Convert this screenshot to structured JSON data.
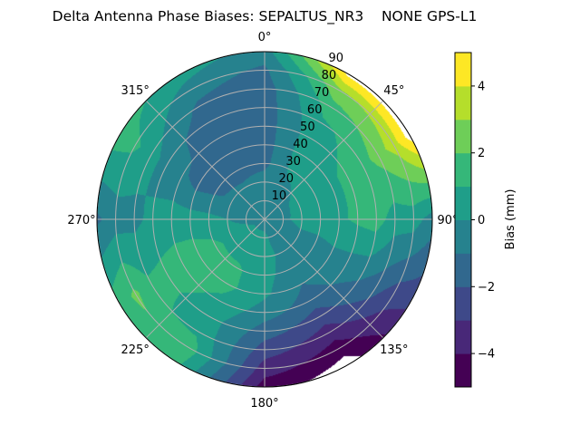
{
  "chart_data": {
    "type": "heatmap",
    "subtype": "polar filled contour",
    "title": "Delta Antenna Phase Biases: SEPALTUS_NR3    NONE GPS-L1",
    "angular_axis": {
      "direction": "clockwise",
      "zero_location": "north",
      "tick_labels": [
        "0°",
        "45°",
        "90°",
        "135°",
        "180°",
        "225°",
        "270°",
        "315°"
      ],
      "tick_values": [
        0,
        45,
        90,
        135,
        180,
        225,
        270,
        315
      ]
    },
    "radial_axis": {
      "range": [
        0,
        90
      ],
      "tick_values": [
        10,
        20,
        30,
        40,
        50,
        60,
        70,
        80,
        90
      ],
      "tick_labels": [
        "10",
        "20",
        "30",
        "40",
        "50",
        "60",
        "70",
        "80",
        "90"
      ]
    },
    "grid": true,
    "levels": [
      -5,
      -4,
      -3,
      -2,
      -1,
      0,
      1,
      2,
      3,
      4,
      5
    ],
    "level_colors": [
      "#440154",
      "#482878",
      "#3e4989",
      "#31688e",
      "#26828e",
      "#1f9e89",
      "#35b779",
      "#6ece58",
      "#b5de2b",
      "#fde725"
    ],
    "out_of_range_color": "#ffffff",
    "colorbar": {
      "label": "Bias (mm)",
      "tick_values": [
        -4,
        -2,
        0,
        2,
        4
      ],
      "tick_labels": [
        "−4",
        "−2",
        "0",
        "2",
        "4"
      ],
      "range": [
        -5,
        5
      ],
      "placement": "right"
    },
    "grid_azimuths": [
      0,
      30,
      60,
      90,
      120,
      150,
      180,
      210,
      240,
      270,
      300,
      330
    ],
    "grid_zeniths": [
      0,
      10,
      20,
      30,
      40,
      50,
      60,
      70,
      80,
      90
    ],
    "values": [
      [
        -0.5,
        -0.5,
        -0.5,
        -1.3,
        -1.5,
        -1.5,
        -1.5,
        -1.5,
        -1.2,
        -0.5
      ],
      [
        -0.5,
        -0.5,
        -0.3,
        0.3,
        0.5,
        0.5,
        0.8,
        1.5,
        2.8,
        5.3
      ],
      [
        -0.5,
        -0.3,
        0.3,
        0.5,
        0.8,
        1.2,
        1.5,
        2.5,
        3.5,
        5.5
      ],
      [
        -0.5,
        -0.3,
        0.5,
        0.6,
        0.8,
        1.2,
        1.5,
        0.5,
        0.5,
        -0.5
      ],
      [
        -0.5,
        -0.5,
        -0.5,
        -0.5,
        -0.3,
        -0.5,
        -0.8,
        -1.5,
        -2.5,
        -2.8
      ],
      [
        -0.5,
        -0.5,
        -0.3,
        -0.5,
        -1.0,
        -1.5,
        -2.5,
        -3.5,
        -4.5,
        -5.5
      ],
      [
        -0.5,
        0.3,
        0.4,
        0.3,
        0.2,
        -0.5,
        -1.5,
        -2.5,
        -3.5,
        -4.5
      ],
      [
        -0.5,
        0.3,
        0.5,
        1.2,
        1.3,
        0.8,
        0.5,
        0.8,
        1.5,
        1.0
      ],
      [
        -0.5,
        0.3,
        0.6,
        1.3,
        1.5,
        1.5,
        1.3,
        1.2,
        2.2,
        1.5
      ],
      [
        -0.5,
        -0.3,
        0.0,
        0.3,
        0.5,
        0.5,
        0.3,
        -0.3,
        -0.5,
        -1.2
      ],
      [
        -0.5,
        -0.5,
        -0.8,
        -1.2,
        -1.5,
        -0.8,
        -0.5,
        0.5,
        1.2,
        1.5
      ],
      [
        -0.5,
        -0.5,
        -0.8,
        -1.5,
        -1.5,
        -1.5,
        -1.5,
        -1.2,
        -0.5,
        0.5
      ]
    ]
  }
}
